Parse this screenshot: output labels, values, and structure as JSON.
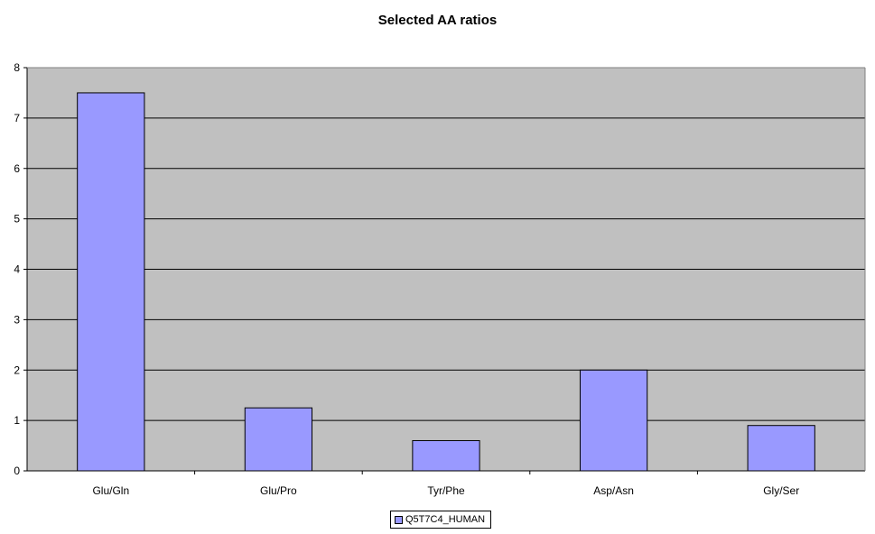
{
  "chart_data": {
    "type": "bar",
    "title": "Selected AA ratios",
    "xlabel": "",
    "ylabel": "",
    "categories": [
      "Glu/Gln",
      "Glu/Pro",
      "Tyr/Phe",
      "Asp/Asn",
      "Gly/Ser"
    ],
    "series": [
      {
        "name": "Q5T7C4_HUMAN",
        "values": [
          7.5,
          1.25,
          0.6,
          2.0,
          0.9
        ]
      }
    ],
    "ylim": [
      0,
      8
    ],
    "yticks": [
      "0",
      "1",
      "2",
      "3",
      "4",
      "5",
      "6",
      "7",
      "8"
    ],
    "grid": true,
    "legend_position": "bottom",
    "colors": {
      "bar": "#9999ff",
      "plot_background": "#c0c0c0",
      "gridline": "#000000"
    }
  }
}
